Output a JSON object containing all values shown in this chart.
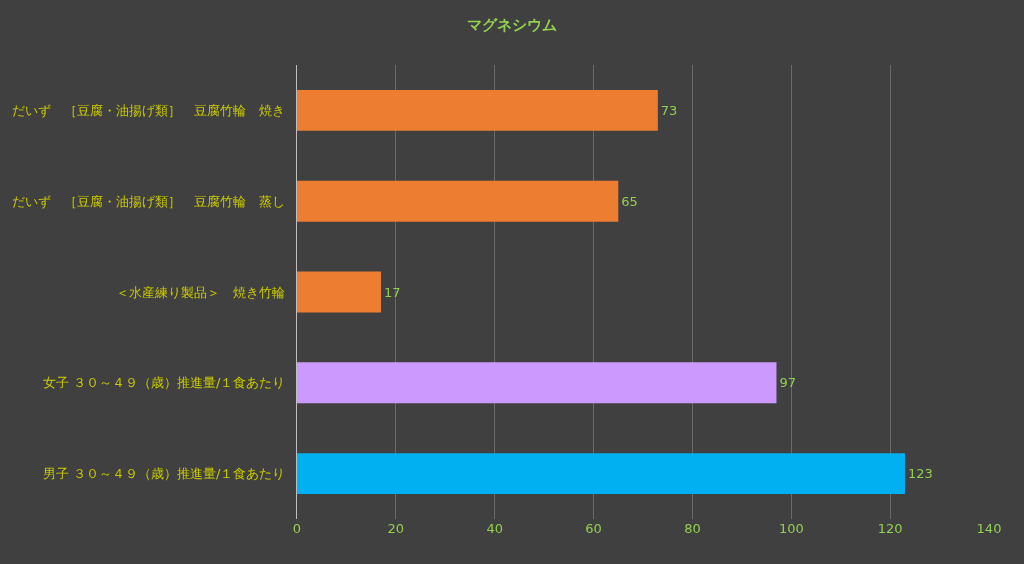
{
  "chart_data": {
    "type": "bar",
    "orientation": "horizontal",
    "title": "マグネシウム",
    "categories": [
      "だいず　［豆腐・油揚げ類］　豆腐竹輪　焼き",
      "だいず　［豆腐・油揚げ類］　豆腐竹輪　蒸し",
      "＜水産練り製品＞　焼き竹輪",
      "女子 ３０～４９（歳）推進量/１食あたり",
      "男子 ３０～４９（歳）推進量/１食あたり"
    ],
    "values": [
      73,
      65,
      17,
      97,
      123
    ],
    "colors": [
      "#ed7d31",
      "#ed7d31",
      "#ed7d31",
      "#cc99ff",
      "#00b0f0"
    ],
    "xlim": [
      0,
      140
    ],
    "xticks": [
      0,
      20,
      40,
      60,
      80,
      100,
      120,
      140
    ],
    "grid": "x",
    "data_labels": true
  }
}
